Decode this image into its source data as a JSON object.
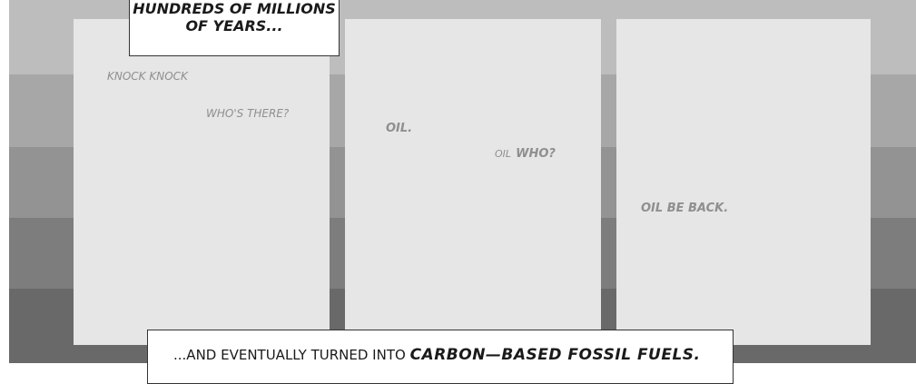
{
  "captions": {
    "top_line1": "HUNDREDS OF MILLIONS",
    "top_line2": "OF YEARS...",
    "bottom_prefix": "...AND EVENTUALLY TURNED INTO ",
    "bottom_emphasis": "CARBON—BASED FOSSIL FUELS."
  },
  "panels": [
    {
      "lines": [
        "KNOCK KNOCK",
        "WHO'S THERE?"
      ]
    },
    {
      "lines": [
        "OIL.",
        "OIL",
        "WHO?"
      ]
    },
    {
      "lines": [
        "OIL BE BACK."
      ]
    }
  ],
  "colors": {
    "band_1": "#bdbdbd",
    "band_2": "#a7a7a7",
    "band_3": "#939393",
    "band_4": "#7d7d7d",
    "band_5": "#696969",
    "panel": "#e6e6e7",
    "dialogue_text": "#8f8f8f",
    "caption_text": "#1a1a1a"
  }
}
